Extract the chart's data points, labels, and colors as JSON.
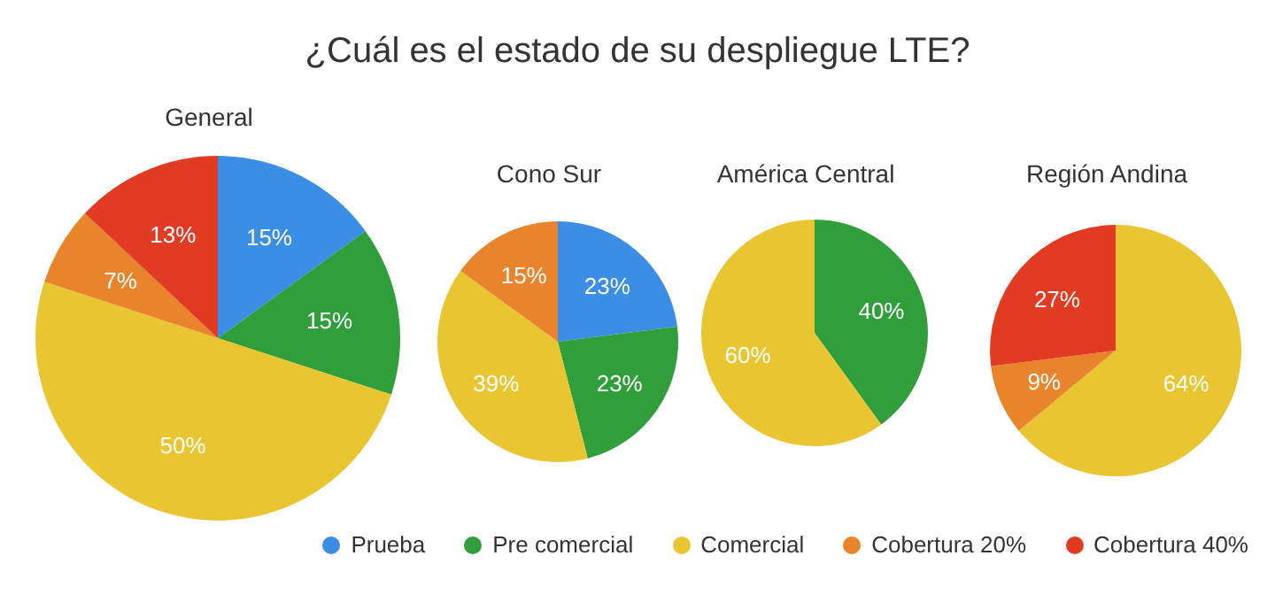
{
  "chart_data": [
    {
      "type": "pie",
      "title": "¿Cuál es el estado de su despliegue LTE?",
      "subtitle": "General",
      "categories": [
        "Prueba",
        "Pre comercial",
        "Comercial",
        "Cobertura 20%",
        "Cobertura 40%"
      ],
      "values": [
        15,
        15,
        50,
        7,
        13
      ],
      "colors": [
        "#3b8ee3",
        "#2f9e3b",
        "#e9c532",
        "#e8852c",
        "#e23b23"
      ],
      "value_labels": [
        "15%",
        "15%",
        "50%",
        "7%",
        "13%"
      ],
      "legend": "bottom"
    },
    {
      "type": "pie",
      "title": "Cono Sur",
      "categories": [
        null,
        null,
        null,
        null,
        null
      ],
      "values": [
        23,
        23,
        39,
        15,
        0
      ],
      "colors": [
        "#3b8ee3",
        "#2f9e3b",
        "#e9c532",
        "#e8852c",
        "#e23b23"
      ],
      "value_labels": [
        "23%",
        "23%",
        "39%",
        "15%",
        null
      ]
    },
    {
      "type": "pie",
      "title": "América Central",
      "categories": [
        null,
        null,
        null,
        null,
        null
      ],
      "values": [
        0,
        40,
        60,
        0,
        0
      ],
      "colors": [
        "#3b8ee3",
        "#2f9e3b",
        "#e9c532",
        "#e8852c",
        "#e23b23"
      ],
      "value_labels": [
        null,
        "40%",
        "60%",
        null,
        null
      ]
    },
    {
      "type": "pie",
      "title": "Región Andina",
      "categories": [
        null,
        null,
        null,
        null,
        null
      ],
      "values": [
        0,
        0,
        64,
        9,
        27
      ],
      "colors": [
        "#3b8ee3",
        "#2f9e3b",
        "#e9c532",
        "#e8852c",
        "#e23b23"
      ],
      "value_labels": [
        null,
        null,
        "64%",
        "9%",
        "27%"
      ]
    }
  ]
}
